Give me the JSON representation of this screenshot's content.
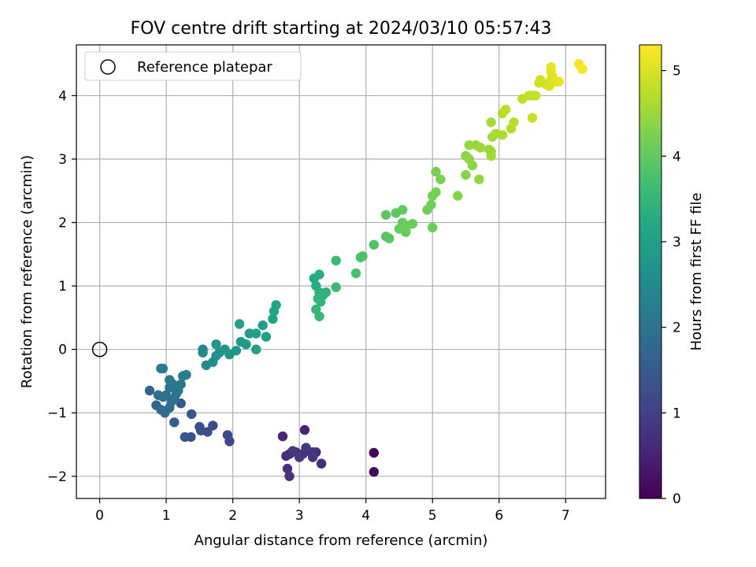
{
  "chart_data": {
    "type": "scatter",
    "title": "FOV centre drift starting at 2024/03/10 05:57:43",
    "xlabel": "Angular distance from reference (arcmin)",
    "ylabel": "Rotation from reference (arcmin)",
    "xlim": [
      -0.35,
      7.6
    ],
    "ylim": [
      -2.35,
      4.8
    ],
    "xticks": [
      "0",
      "1",
      "2",
      "3",
      "4",
      "5",
      "6",
      "7"
    ],
    "yticks": [
      "−2",
      "−1",
      "0",
      "1",
      "2",
      "3",
      "4"
    ],
    "grid": true,
    "legend": {
      "placement": "upper-left",
      "entries": [
        {
          "label": "Reference platepar",
          "marker": "open-circle"
        }
      ]
    },
    "reference_point": {
      "x": 0,
      "y": 0
    },
    "colorbar": {
      "label": "Hours from first FF file",
      "colormap": "viridis",
      "range": [
        0,
        5.3
      ],
      "ticks": [
        "0",
        "1",
        "2",
        "3",
        "4",
        "5"
      ]
    },
    "points": [
      [
        4.12,
        -1.63,
        0.05
      ],
      [
        4.12,
        -1.93,
        0.1
      ],
      [
        3.08,
        -1.27,
        0.5
      ],
      [
        2.75,
        -1.37,
        0.55
      ],
      [
        2.85,
        -1.65,
        0.6
      ],
      [
        3.12,
        -1.6,
        0.62
      ],
      [
        3.33,
        -1.8,
        0.65
      ],
      [
        3.25,
        -1.62,
        0.68
      ],
      [
        2.95,
        -1.62,
        0.7
      ],
      [
        2.8,
        -1.68,
        0.72
      ],
      [
        2.82,
        -1.88,
        0.74
      ],
      [
        2.85,
        -2.0,
        0.76
      ],
      [
        3.05,
        -1.65,
        0.78
      ],
      [
        3.2,
        -1.62,
        0.8
      ],
      [
        3.1,
        -1.55,
        0.82
      ],
      [
        3.2,
        -1.7,
        0.84
      ],
      [
        3.0,
        -1.7,
        0.86
      ],
      [
        2.9,
        -1.6,
        0.88
      ],
      [
        1.95,
        -1.45,
        1.1
      ],
      [
        1.92,
        -1.35,
        1.15
      ],
      [
        1.7,
        -1.2,
        1.2
      ],
      [
        1.62,
        -1.3,
        1.25
      ],
      [
        1.5,
        -1.22,
        1.3
      ],
      [
        1.52,
        -1.28,
        1.32
      ],
      [
        1.37,
        -1.38,
        1.35
      ],
      [
        1.28,
        -1.38,
        1.4
      ],
      [
        1.38,
        -1.02,
        1.45
      ],
      [
        1.22,
        -0.85,
        1.5
      ],
      [
        1.12,
        -1.15,
        1.55
      ],
      [
        0.75,
        -0.65,
        1.7
      ],
      [
        0.85,
        -0.88,
        1.75
      ],
      [
        0.92,
        -0.95,
        1.8
      ],
      [
        0.98,
        -1.0,
        1.82
      ],
      [
        1.05,
        -0.92,
        1.85
      ],
      [
        0.95,
        -0.75,
        1.9
      ],
      [
        1.0,
        -0.72,
        1.92
      ],
      [
        0.88,
        -0.72,
        1.95
      ],
      [
        1.08,
        -0.82,
        1.98
      ],
      [
        1.12,
        -0.78,
        2.0
      ],
      [
        1.15,
        -0.7,
        2.02
      ],
      [
        1.05,
        -0.6,
        2.05
      ],
      [
        1.1,
        -0.55,
        2.08
      ],
      [
        1.05,
        -0.48,
        2.1
      ],
      [
        1.18,
        -0.65,
        2.12
      ],
      [
        1.22,
        -0.55,
        2.15
      ],
      [
        0.95,
        -0.3,
        2.18
      ],
      [
        0.92,
        -0.3,
        2.2
      ],
      [
        1.25,
        -0.42,
        2.22
      ],
      [
        1.3,
        -0.4,
        2.25
      ],
      [
        1.55,
        0.0,
        2.4
      ],
      [
        1.55,
        -0.05,
        2.45
      ],
      [
        1.6,
        -0.25,
        2.5
      ],
      [
        1.7,
        -0.2,
        2.55
      ],
      [
        1.75,
        -0.1,
        2.6
      ],
      [
        1.8,
        -0.05,
        2.65
      ],
      [
        1.88,
        0.0,
        2.7
      ],
      [
        1.75,
        0.08,
        2.72
      ],
      [
        1.95,
        -0.08,
        2.75
      ],
      [
        2.05,
        -0.02,
        2.8
      ],
      [
        2.12,
        0.12,
        2.85
      ],
      [
        2.2,
        0.08,
        2.88
      ],
      [
        2.25,
        0.25,
        2.9
      ],
      [
        2.35,
        0.25,
        2.93
      ],
      [
        2.45,
        0.38,
        2.96
      ],
      [
        2.35,
        0.0,
        2.98
      ],
      [
        2.5,
        0.2,
        3.0
      ],
      [
        2.1,
        0.4,
        3.02
      ],
      [
        2.6,
        0.48,
        3.05
      ],
      [
        2.62,
        0.6,
        3.08
      ],
      [
        2.65,
        0.7,
        3.1
      ],
      [
        3.22,
        1.12,
        3.25
      ],
      [
        3.3,
        1.18,
        3.3
      ],
      [
        3.25,
        1.0,
        3.32
      ],
      [
        3.35,
        0.85,
        3.35
      ],
      [
        3.3,
        0.9,
        3.38
      ],
      [
        3.28,
        0.8,
        3.4
      ],
      [
        3.4,
        0.9,
        3.42
      ],
      [
        3.32,
        0.75,
        3.45
      ],
      [
        3.25,
        0.63,
        3.47
      ],
      [
        3.3,
        0.52,
        3.5
      ],
      [
        3.55,
        1.4,
        3.55
      ],
      [
        3.55,
        0.98,
        3.57
      ],
      [
        3.85,
        1.2,
        3.75
      ],
      [
        3.92,
        1.45,
        3.78
      ],
      [
        3.95,
        1.47,
        3.8
      ],
      [
        4.12,
        1.65,
        3.85
      ],
      [
        4.3,
        1.78,
        3.9
      ],
      [
        4.35,
        1.75,
        3.92
      ],
      [
        4.3,
        2.12,
        3.95
      ],
      [
        4.45,
        2.15,
        3.97
      ],
      [
        4.55,
        2.2,
        4.0
      ],
      [
        4.5,
        1.9,
        4.02
      ],
      [
        4.55,
        2.0,
        4.04
      ],
      [
        4.6,
        1.85,
        4.05
      ],
      [
        4.62,
        1.95,
        4.07
      ],
      [
        4.7,
        1.98,
        4.09
      ],
      [
        4.58,
        1.9,
        4.1
      ],
      [
        5.0,
        1.92,
        4.12
      ],
      [
        4.92,
        2.2,
        4.14
      ],
      [
        4.98,
        2.28,
        4.16
      ],
      [
        5.0,
        2.42,
        4.18
      ],
      [
        5.05,
        2.48,
        4.2
      ],
      [
        5.12,
        2.68,
        4.22
      ],
      [
        5.05,
        2.8,
        4.24
      ],
      [
        5.38,
        2.42,
        4.3
      ],
      [
        5.5,
        2.75,
        4.35
      ],
      [
        5.5,
        3.05,
        4.37
      ],
      [
        5.55,
        3.0,
        4.39
      ],
      [
        5.6,
        2.9,
        4.41
      ],
      [
        5.7,
        2.68,
        4.43
      ],
      [
        5.55,
        3.22,
        4.45
      ],
      [
        5.65,
        3.22,
        4.47
      ],
      [
        5.72,
        3.18,
        4.49
      ],
      [
        5.85,
        3.15,
        4.51
      ],
      [
        5.88,
        3.12,
        4.53
      ],
      [
        5.88,
        3.05,
        4.55
      ],
      [
        5.9,
        3.35,
        4.57
      ],
      [
        5.88,
        3.58,
        4.59
      ],
      [
        5.95,
        3.4,
        4.61
      ],
      [
        6.05,
        3.38,
        4.63
      ],
      [
        6.18,
        3.48,
        4.7
      ],
      [
        6.22,
        3.58,
        4.72
      ],
      [
        6.05,
        3.72,
        4.74
      ],
      [
        6.1,
        3.78,
        4.76
      ],
      [
        6.35,
        3.95,
        4.78
      ],
      [
        6.45,
        4.0,
        4.8
      ],
      [
        6.5,
        4.0,
        4.82
      ],
      [
        6.55,
        4.0,
        4.84
      ],
      [
        6.5,
        3.65,
        4.86
      ],
      [
        6.6,
        4.2,
        4.88
      ],
      [
        6.62,
        4.25,
        4.9
      ],
      [
        6.7,
        4.18,
        4.92
      ],
      [
        6.75,
        4.15,
        5.0
      ],
      [
        6.8,
        4.3,
        5.02
      ],
      [
        6.78,
        4.25,
        5.04
      ],
      [
        6.85,
        4.22,
        5.06
      ],
      [
        6.78,
        4.38,
        5.08
      ],
      [
        6.78,
        4.45,
        5.1
      ],
      [
        6.9,
        4.22,
        5.12
      ],
      [
        7.2,
        4.5,
        5.2
      ],
      [
        7.25,
        4.42,
        5.25
      ]
    ]
  }
}
